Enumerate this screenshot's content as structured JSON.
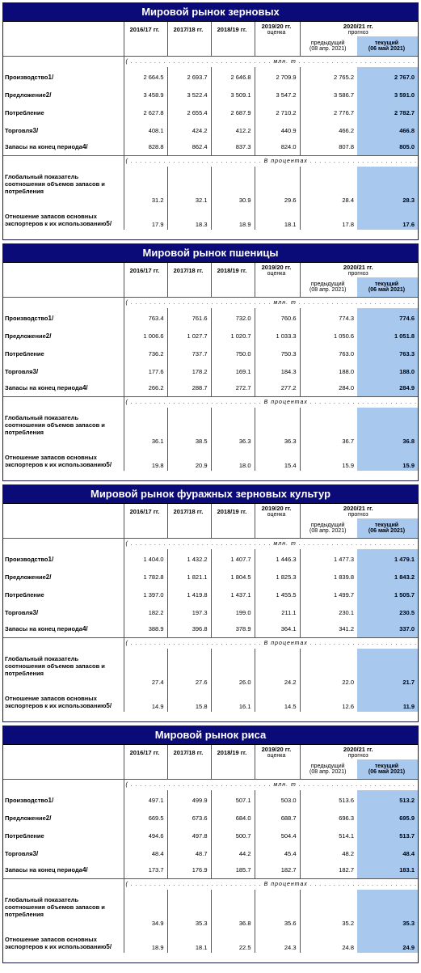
{
  "headers": {
    "y1": "2016/17 гг.",
    "y2": "2017/18 гг.",
    "y3": "2018/19 гг.",
    "y4": "2019/20 гг.",
    "y4_note": "оценка",
    "forecast": "2020/21 гг.",
    "forecast_note": "прогноз",
    "prev": "предыдущий",
    "prev_date": "(08 апр. 2021)",
    "cur": "текущий",
    "cur_date": "(06 май 2021)",
    "unit_mt": "( . . . . . . . . . . . . . . . . . . . . . . . . . . . . . . млн. т . . . . . . . . . . . . . . . . . . . . . . . . . . . . . . . . . )",
    "unit_pct": "( . . . . . . . . . . . . . . . . . . . . . . . . . . . . В процентах . . . . . . . . . . . . . . . . . . . . . . . . . . . . . . . . . )"
  },
  "row_labels": {
    "production": "Производство",
    "production_fn": "1/",
    "supply": "Предложение",
    "supply_fn": "2/",
    "consumption": "Потребление",
    "trade": "Торговля",
    "trade_fn": "3/",
    "stocks": "Запасы на конец периода",
    "stocks_fn": "4/",
    "ratio": "Глобальный показатель соотношения объемов запасов и потребления",
    "exporters": "Отношение запасов основных экспортеров к их использованию",
    "exporters_fn": "5/"
  },
  "sections": [
    {
      "title": "Мировой рынок зерновых",
      "rows": [
        [
          "2 664.5",
          "2 693.7",
          "2 646.8",
          "2 709.9",
          "2 765.2",
          "2 767.0"
        ],
        [
          "3 458.9",
          "3 522.4",
          "3 509.1",
          "3 547.2",
          "3 586.7",
          "3 591.0"
        ],
        [
          "2 627.8",
          "2 655.4",
          "2 687.9",
          "2 710.2",
          "2 776.7",
          "2 782.7"
        ],
        [
          "408.1",
          "424.2",
          "412.2",
          "440.9",
          "466.2",
          "466.8"
        ],
        [
          "828.8",
          "862.4",
          "837.3",
          "824.0",
          "807.8",
          "805.0"
        ]
      ],
      "pct": [
        [
          "31.2",
          "32.1",
          "30.9",
          "29.6",
          "28.4",
          "28.3"
        ],
        [
          "17.9",
          "18.3",
          "18.9",
          "18.1",
          "17.8",
          "17.6"
        ]
      ]
    },
    {
      "title": "Мировой рынок пшеницы",
      "rows": [
        [
          "763.4",
          "761.6",
          "732.0",
          "760.6",
          "774.3",
          "774.6"
        ],
        [
          "1 006.6",
          "1 027.7",
          "1 020.7",
          "1 033.3",
          "1 050.6",
          "1 051.8"
        ],
        [
          "736.2",
          "737.7",
          "750.0",
          "750.3",
          "763.0",
          "763.3"
        ],
        [
          "177.6",
          "178.2",
          "169.1",
          "184.3",
          "188.0",
          "188.0"
        ],
        [
          "266.2",
          "288.7",
          "272.7",
          "277.2",
          "284.0",
          "284.9"
        ]
      ],
      "pct": [
        [
          "36.1",
          "38.5",
          "36.3",
          "36.3",
          "36.7",
          "36.8"
        ],
        [
          "19.8",
          "20.9",
          "18.0",
          "15.4",
          "15.9",
          "15.9"
        ]
      ]
    },
    {
      "title": "Мировой рынок фуражных зерновых культур",
      "rows": [
        [
          "1 404.0",
          "1 432.2",
          "1 407.7",
          "1 446.3",
          "1 477.3",
          "1 479.1"
        ],
        [
          "1 782.8",
          "1 821.1",
          "1 804.5",
          "1 825.3",
          "1 839.8",
          "1 843.2"
        ],
        [
          "1 397.0",
          "1 419.8",
          "1 437.1",
          "1 455.5",
          "1 499.7",
          "1 505.7"
        ],
        [
          "182.2",
          "197.3",
          "199.0",
          "211.1",
          "230.1",
          "230.5"
        ],
        [
          "388.9",
          "396.8",
          "378.9",
          "364.1",
          "341.2",
          "337.0"
        ]
      ],
      "pct": [
        [
          "27.4",
          "27.6",
          "26.0",
          "24.2",
          "22.0",
          "21.7"
        ],
        [
          "14.9",
          "15.8",
          "16.1",
          "14.5",
          "12.6",
          "11.9"
        ]
      ]
    },
    {
      "title": "Мировой рынок риса",
      "rows": [
        [
          "497.1",
          "499.9",
          "507.1",
          "503.0",
          "513.6",
          "513.2"
        ],
        [
          "669.5",
          "673.6",
          "684.0",
          "688.7",
          "696.3",
          "695.9"
        ],
        [
          "494.6",
          "497.8",
          "500.7",
          "504.4",
          "514.1",
          "513.7"
        ],
        [
          "48.4",
          "48.7",
          "44.2",
          "45.4",
          "48.2",
          "48.4"
        ],
        [
          "173.7",
          "176.9",
          "185.7",
          "182.7",
          "182.7",
          "183.1"
        ]
      ],
      "pct": [
        [
          "34.9",
          "35.3",
          "36.8",
          "35.6",
          "35.2",
          "35.3"
        ],
        [
          "18.9",
          "18.1",
          "22.5",
          "24.3",
          "24.8",
          "24.9"
        ]
      ]
    }
  ]
}
